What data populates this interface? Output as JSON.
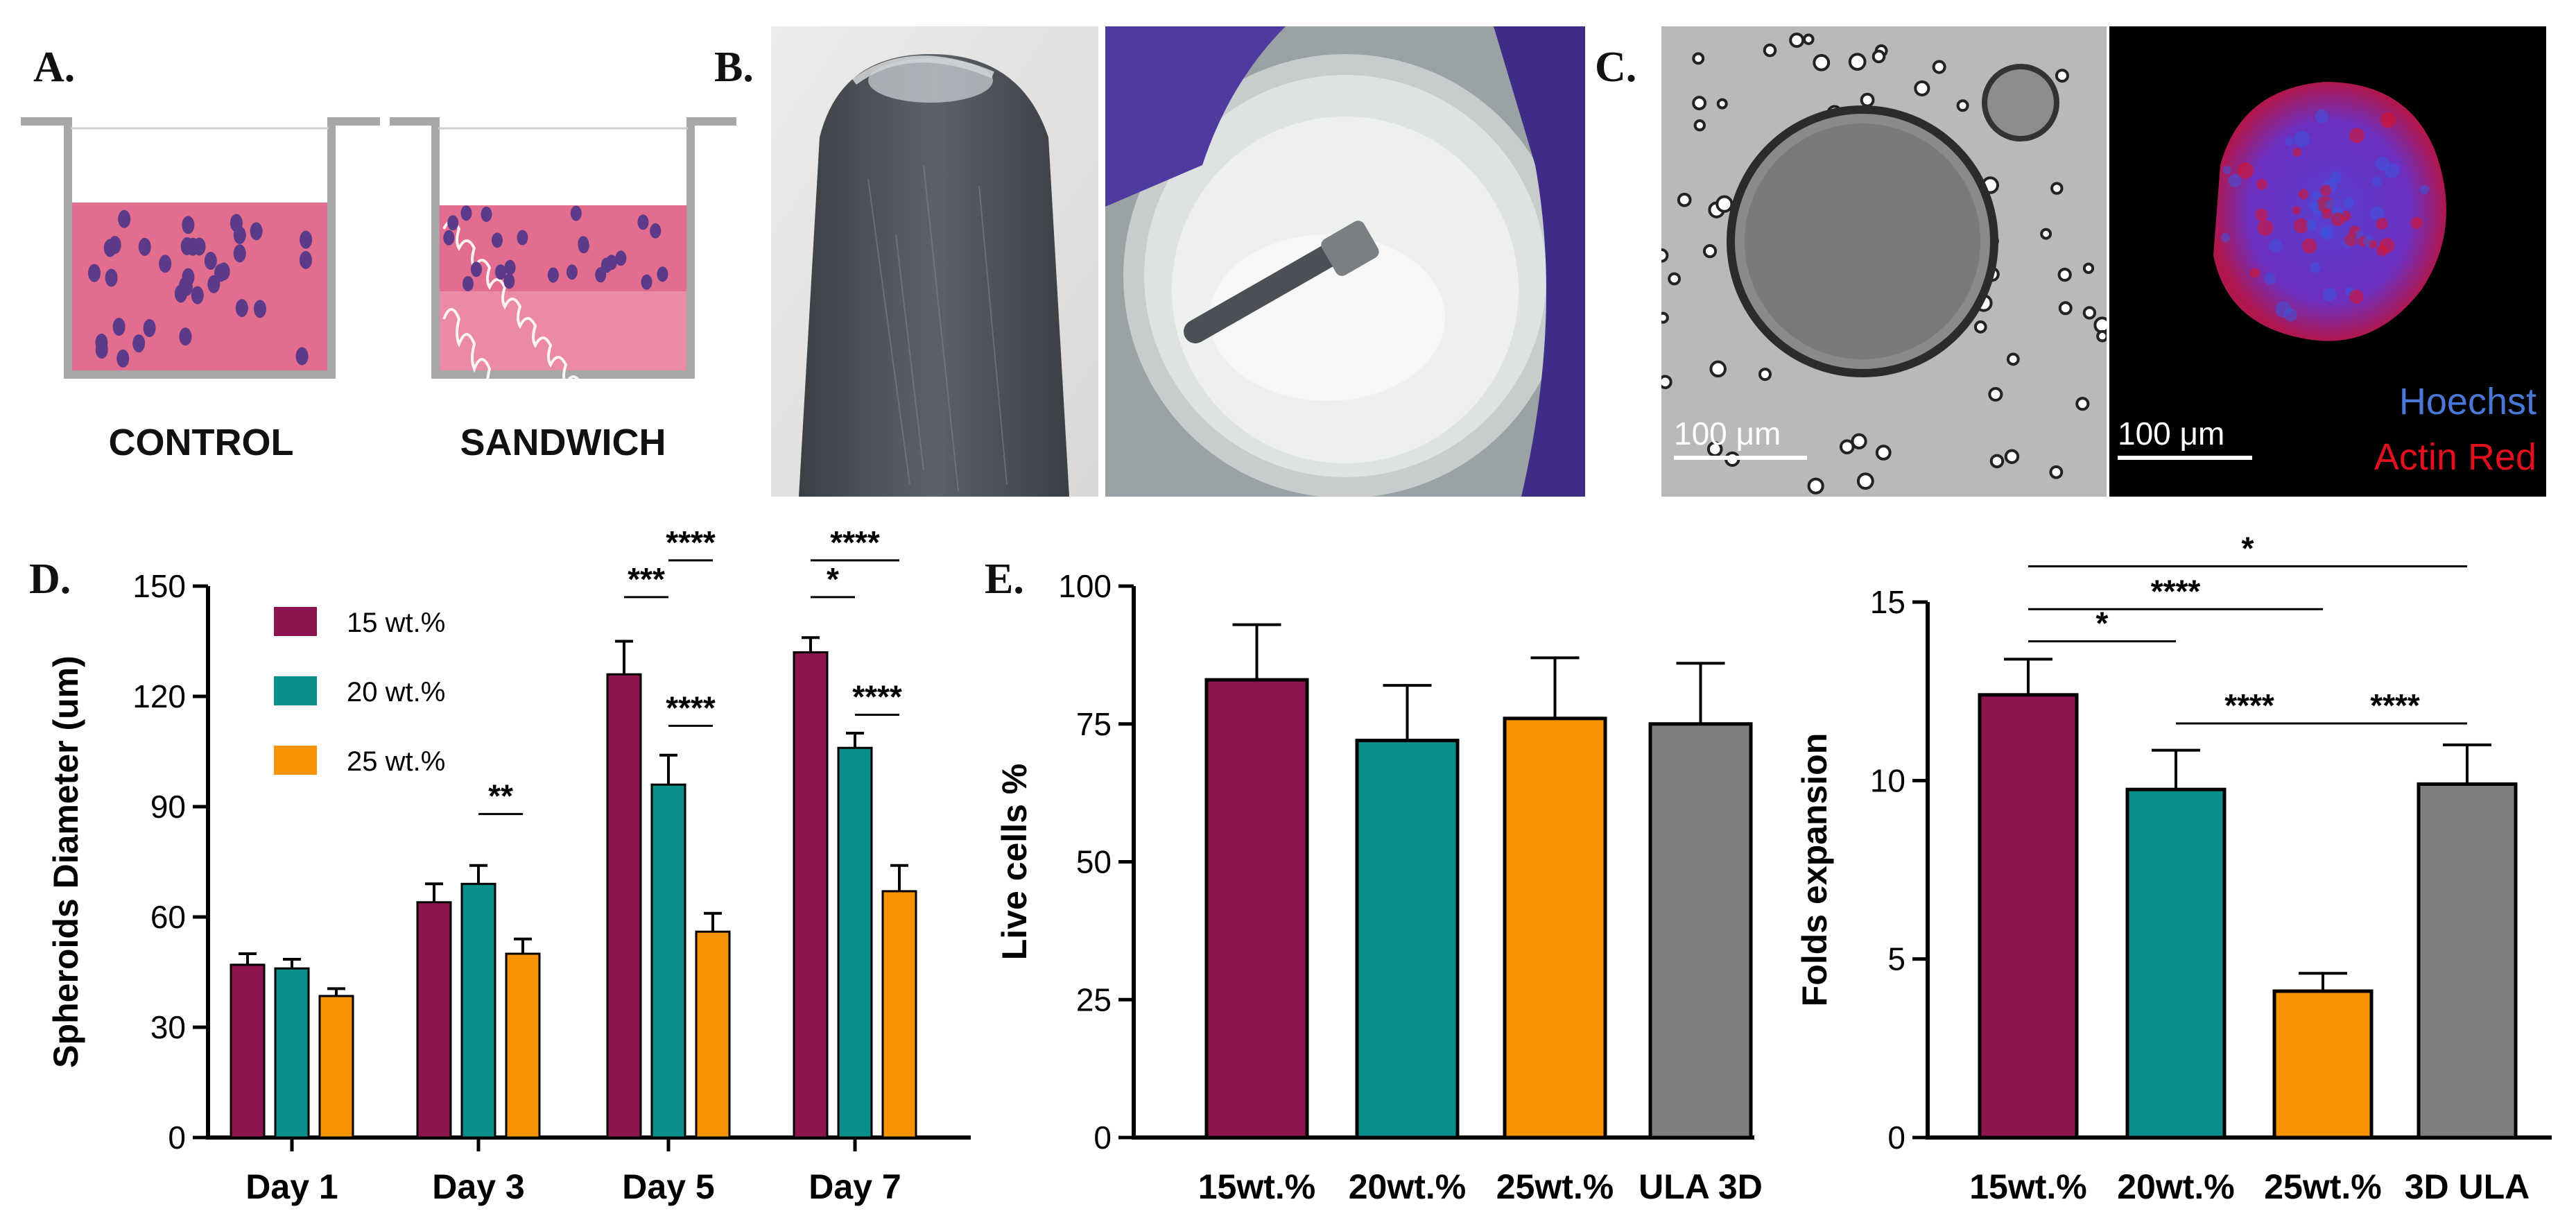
{
  "panels": {
    "a": {
      "letter": "A.",
      "labels": [
        "CONTROL",
        "SANDWICH"
      ]
    },
    "b": {
      "letter": "B."
    },
    "c": {
      "letter": "C.",
      "scalebar_left": "100 μm",
      "scalebar_right": "100 μm",
      "stain_1": "Hoechst",
      "stain_2": "Actin Red",
      "colors": {
        "hoechst": "#4a78d6",
        "actin": "#e0101e"
      }
    },
    "d": {
      "letter": "D."
    },
    "e": {
      "letter": "E."
    }
  },
  "colors": {
    "wt15": "#8e1450",
    "wt20": "#0b8f8c",
    "wt25": "#f59300",
    "ula": "#7f7f7f",
    "pink": "#e36d8e"
  },
  "chart_data": [
    {
      "id": "D",
      "type": "bar",
      "categories": [
        "Day 1",
        "Day 3",
        "Day 5",
        "Day 7"
      ],
      "ylabel": "Spheroids Diameter (um)",
      "ylim": [
        0,
        150
      ],
      "yticks": [
        "0",
        "30",
        "60",
        "90",
        "120",
        "150"
      ],
      "legend_position": "top-left",
      "series": [
        {
          "name": "15 wt.%",
          "color": "#8e1450",
          "values": [
            47,
            64,
            126,
            132
          ],
          "errors": [
            3,
            5,
            9,
            4
          ]
        },
        {
          "name": "20 wt.%",
          "color": "#0b8f8c",
          "values": [
            46,
            69,
            96,
            106
          ],
          "errors": [
            2.5,
            5,
            8,
            4
          ]
        },
        {
          "name": "25 wt.%",
          "color": "#f59300",
          "values": [
            38.5,
            50,
            56,
            67
          ],
          "errors": [
            2,
            4,
            5,
            7
          ]
        }
      ],
      "significance": [
        {
          "category": 1,
          "from": 1,
          "to": 2,
          "label": "**",
          "y": 88
        },
        {
          "category": 2,
          "from": 0,
          "to": 1,
          "label": "***",
          "y": 147
        },
        {
          "category": 2,
          "from": 1,
          "to": 2,
          "label": "****",
          "y": 157
        },
        {
          "category": 2,
          "from": 1,
          "to": 2,
          "label": "****",
          "y": 112
        },
        {
          "category": 3,
          "from": 0,
          "to": 1,
          "label": "*",
          "y": 147
        },
        {
          "category": 3,
          "from": 0,
          "to": 2,
          "label": "****",
          "y": 157
        },
        {
          "category": 3,
          "from": 1,
          "to": 2,
          "label": "****",
          "y": 115
        }
      ]
    },
    {
      "id": "E1",
      "type": "bar",
      "categories": [
        "15wt.%",
        "20wt.%",
        "25wt.%",
        "ULA 3D"
      ],
      "colors": [
        "#8e1450",
        "#0b8f8c",
        "#f59300",
        "#7f7f7f"
      ],
      "ylabel": "Live cells %",
      "ylim": [
        0,
        100
      ],
      "yticks": [
        "0",
        "25",
        "50",
        "75",
        "100"
      ],
      "values": [
        83,
        72,
        76,
        75
      ],
      "errors": [
        10,
        10,
        11,
        11
      ]
    },
    {
      "id": "E2",
      "type": "bar",
      "categories": [
        "15wt.%",
        "20wt.%",
        "25wt.%",
        "3D ULA"
      ],
      "colors": [
        "#8e1450",
        "#0b8f8c",
        "#f59300",
        "#7f7f7f"
      ],
      "ylabel": "Folds expansion",
      "ylim": [
        0,
        15
      ],
      "yticks": [
        "0",
        "5",
        "10",
        "15"
      ],
      "values": [
        12.4,
        9.75,
        4.1,
        9.9
      ],
      "errors": [
        1.0,
        1.1,
        0.5,
        1.1
      ],
      "significance": [
        {
          "from": 0,
          "to": 1,
          "label": "*",
          "y": 13.9
        },
        {
          "from": 0,
          "to": 2,
          "label": "****",
          "y": 14.8
        },
        {
          "from": 0,
          "to": 3,
          "label": "*",
          "y": 16.0
        },
        {
          "from": 1,
          "to": 2,
          "label": "****",
          "y": 11.6
        },
        {
          "from": 2,
          "to": 3,
          "label": "****",
          "y": 11.6
        }
      ]
    }
  ]
}
